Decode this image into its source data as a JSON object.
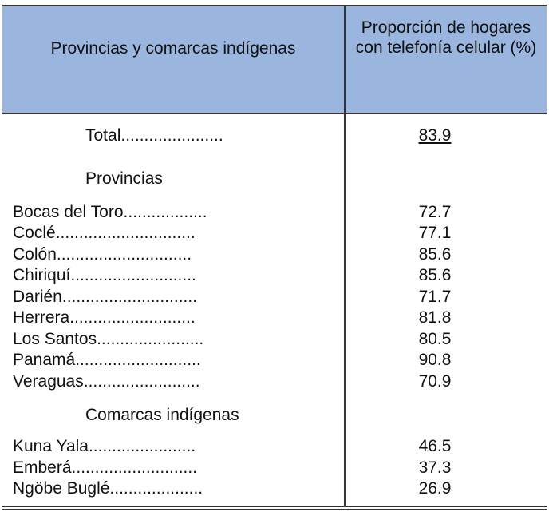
{
  "header": {
    "left": "Provincias y comarcas indígenas",
    "right": "Proporción de hogares con telefonía celular (%)"
  },
  "total": {
    "label": "Total......................",
    "value": "83.9"
  },
  "sections": [
    {
      "title": "Provincias",
      "rows": [
        {
          "label": "Bocas del Toro..................",
          "value": "72.7"
        },
        {
          "label": "Coclé..............................",
          "value": "77.1"
        },
        {
          "label": "Colón.............................",
          "value": "85.6"
        },
        {
          "label": "Chiriquí...........................",
          "value": "85.6"
        },
        {
          "label": "Darién.............................",
          "value": "71.7"
        },
        {
          "label": "Herrera...........................",
          "value": "81.8"
        },
        {
          "label": "Los Santos.......................",
          "value": "80.5"
        },
        {
          "label": "Panamá...........................",
          "value": "90.8"
        },
        {
          "label": "Veraguas.........................",
          "value": "70.9"
        }
      ]
    },
    {
      "title": "Comarcas indígenas",
      "rows": [
        {
          "label": "Kuna Yala.......................",
          "value": "46.5"
        },
        {
          "label": "Emberá...........................",
          "value": "37.3"
        },
        {
          "label": "Ngöbe Buglé....................",
          "value": "26.9"
        }
      ]
    }
  ]
}
